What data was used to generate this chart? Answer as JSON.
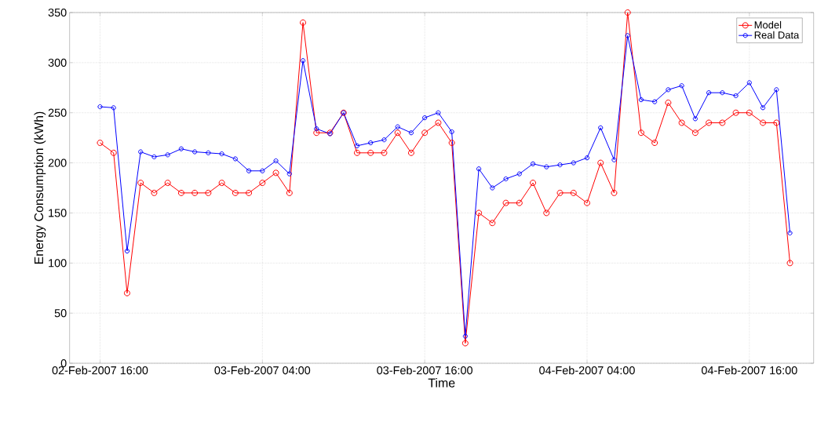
{
  "chart_data": {
    "type": "line",
    "xlabel": "Time",
    "ylabel": "Energy Consumption (kWh)",
    "x": [
      "2007-02-02T16:00",
      "2007-02-02T17:00",
      "2007-02-02T18:00",
      "2007-02-02T19:00",
      "2007-02-02T20:00",
      "2007-02-02T21:00",
      "2007-02-02T22:00",
      "2007-02-02T23:00",
      "2007-02-03T00:00",
      "2007-02-03T01:00",
      "2007-02-03T02:00",
      "2007-02-03T03:00",
      "2007-02-03T04:00",
      "2007-02-03T05:00",
      "2007-02-03T06:00",
      "2007-02-03T07:00",
      "2007-02-03T08:00",
      "2007-02-03T09:00",
      "2007-02-03T10:00",
      "2007-02-03T11:00",
      "2007-02-03T12:00",
      "2007-02-03T13:00",
      "2007-02-03T14:00",
      "2007-02-03T15:00",
      "2007-02-03T16:00",
      "2007-02-03T17:00",
      "2007-02-03T18:00",
      "2007-02-03T19:00",
      "2007-02-03T20:00",
      "2007-02-03T21:00",
      "2007-02-03T22:00",
      "2007-02-03T23:00",
      "2007-02-04T00:00",
      "2007-02-04T01:00",
      "2007-02-04T02:00",
      "2007-02-04T03:00",
      "2007-02-04T04:00",
      "2007-02-04T05:00",
      "2007-02-04T06:00",
      "2007-02-04T07:00",
      "2007-02-04T08:00",
      "2007-02-04T09:00",
      "2007-02-04T10:00",
      "2007-02-04T11:00",
      "2007-02-04T12:00",
      "2007-02-04T13:00",
      "2007-02-04T14:00",
      "2007-02-04T15:00",
      "2007-02-04T16:00",
      "2007-02-04T17:00",
      "2007-02-04T18:00",
      "2007-02-04T19:00"
    ],
    "series": [
      {
        "name": "Model",
        "color": "#ff0000",
        "values": [
          220,
          210,
          70,
          180,
          170,
          180,
          170,
          170,
          170,
          180,
          170,
          170,
          180,
          190,
          170,
          340,
          230,
          230,
          250,
          210,
          210,
          210,
          230,
          210,
          230,
          240,
          220,
          20,
          150,
          140,
          160,
          160,
          180,
          150,
          170,
          170,
          160,
          200,
          170,
          350,
          230,
          220,
          260,
          240,
          230,
          240,
          240,
          250,
          250,
          240,
          240,
          100
        ]
      },
      {
        "name": "Real Data",
        "color": "#0000ff",
        "values": [
          256,
          255,
          112,
          211,
          206,
          208,
          214,
          211,
          210,
          209,
          204,
          192,
          192,
          202,
          189,
          302,
          234,
          229,
          250,
          217,
          220,
          223,
          236,
          230,
          245,
          250,
          231,
          27,
          194,
          175,
          184,
          189,
          199,
          196,
          198,
          200,
          205,
          235,
          203,
          327,
          263,
          261,
          273,
          277,
          244,
          270,
          270,
          267,
          280,
          255,
          273,
          130
        ]
      }
    ],
    "xlim": [
      "2007-02-02T13:45",
      "2007-02-04T20:45"
    ],
    "xticks": [
      {
        "value": "2007-02-02T16:00",
        "label": "02-Feb-2007 16:00"
      },
      {
        "value": "2007-02-03T04:00",
        "label": "03-Feb-2007 04:00"
      },
      {
        "value": "2007-02-03T16:00",
        "label": "03-Feb-2007 16:00"
      },
      {
        "value": "2007-02-04T04:00",
        "label": "04-Feb-2007 04:00"
      },
      {
        "value": "2007-02-04T16:00",
        "label": "04-Feb-2007 16:00"
      }
    ],
    "ylim": [
      0,
      350
    ],
    "yticks": [
      0,
      50,
      100,
      150,
      200,
      250,
      300,
      350
    ],
    "grid": true,
    "legend": "top right",
    "marker": "circle",
    "line_style": "solid"
  }
}
